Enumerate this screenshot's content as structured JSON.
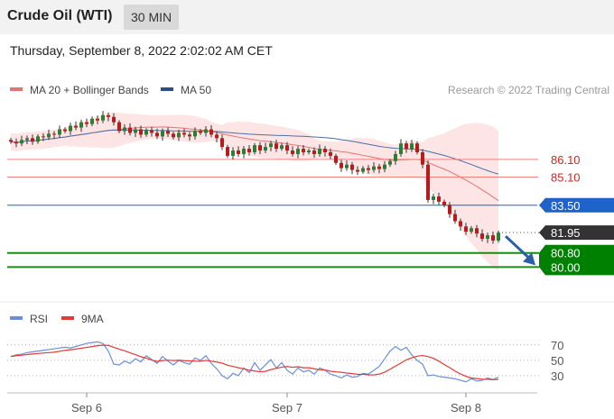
{
  "header": {
    "title": "Crude Oil (WTI)",
    "timeframe": "30 MIN"
  },
  "datetime": "Thursday, September 8, 2022 2:02:02 AM CET",
  "copyright": "Research © 2022 Trading Central",
  "colors": {
    "candle_up": "#2e7d32",
    "candle_down": "#b71c1c",
    "ma20": "#e57373",
    "bollinger_fill": "#fde0e0",
    "ma50": "#4a6fa5",
    "resistance": "#f08080",
    "pivot": "#1565c0",
    "support": "#1b8a1b",
    "support_label_bg": "#008000",
    "current_label_bg": "#333333",
    "rsi": "#6b8fd6",
    "rsi_ma": "#e53935",
    "arrow": "#2b5ea8"
  },
  "chart_data": [
    {
      "type": "candlestick",
      "title": "",
      "legend": [
        {
          "name": "MA 20 + Bollinger Bands",
          "color": "#e57373"
        },
        {
          "name": "MA 50",
          "color": "#2b4f8c"
        }
      ],
      "legend_placement": "top-left",
      "ylim": [
        79.0,
        89.0
      ],
      "levels": [
        {
          "label": "86.10",
          "value": 86.1,
          "kind": "resistance"
        },
        {
          "label": "85.10",
          "value": 85.1,
          "kind": "resistance"
        },
        {
          "label": "83.50",
          "value": 83.5,
          "kind": "pivot"
        },
        {
          "label": "81.95",
          "value": 81.95,
          "kind": "current"
        },
        {
          "label": "80.80",
          "value": 80.8,
          "kind": "support"
        },
        {
          "label": "80.00",
          "value": 80.0,
          "kind": "support"
        }
      ],
      "close": [
        87.1,
        87.0,
        87.2,
        87.3,
        87.1,
        87.4,
        87.35,
        87.55,
        87.5,
        87.8,
        87.7,
        88.0,
        87.9,
        88.2,
        88.1,
        88.4,
        88.3,
        88.6,
        88.5,
        88.2,
        87.7,
        87.9,
        87.6,
        87.8,
        87.5,
        87.75,
        87.6,
        87.4,
        87.7,
        87.55,
        87.35,
        87.6,
        87.5,
        87.4,
        87.7,
        87.6,
        87.8,
        87.5,
        87.3,
        86.8,
        86.3,
        86.6,
        86.4,
        86.7,
        86.5,
        86.9,
        86.6,
        86.8,
        87.0,
        86.7,
        86.9,
        86.6,
        86.4,
        86.7,
        86.5,
        86.6,
        86.4,
        86.7,
        86.5,
        86.3,
        85.9,
        85.6,
        85.8,
        85.5,
        85.4,
        85.6,
        85.5,
        85.7,
        85.55,
        85.8,
        86.0,
        86.4,
        87.0,
        86.7,
        87.0,
        86.5,
        85.8,
        83.8,
        84.0,
        83.7,
        83.5,
        83.0,
        82.6,
        82.3,
        82.0,
        82.2,
        81.9,
        81.6,
        81.8,
        81.5,
        81.95
      ],
      "x_tick_labels": [
        "Sep 6",
        "Sep 7",
        "Sep 8"
      ],
      "x_tick_index": [
        14,
        51,
        84
      ]
    },
    {
      "type": "line",
      "legend": [
        {
          "name": "RSI",
          "color": "#6b8fd6"
        },
        {
          "name": "9MA",
          "color": "#e53935"
        }
      ],
      "legend_placement": "top-left",
      "ylim": [
        10,
        85
      ],
      "y_ticks": [
        70,
        50,
        30
      ],
      "rsi": [
        55,
        57,
        58,
        60,
        61,
        62,
        63,
        64,
        65,
        66,
        67,
        66,
        68,
        70,
        72,
        73,
        74,
        72,
        62,
        45,
        44,
        49,
        46,
        52,
        48,
        56,
        51,
        46,
        55,
        49,
        44,
        50,
        47,
        45,
        53,
        50,
        56,
        46,
        39,
        30,
        26,
        33,
        30,
        40,
        34,
        47,
        37,
        44,
        51,
        40,
        47,
        37,
        32,
        40,
        35,
        37,
        32,
        40,
        37,
        32,
        30,
        27,
        31,
        28,
        29,
        33,
        32,
        37,
        42,
        52,
        62,
        68,
        63,
        67,
        57,
        50,
        45,
        30,
        31,
        29,
        28,
        27,
        26,
        24,
        22,
        26,
        23,
        24,
        27,
        25,
        28
      ]
    }
  ]
}
